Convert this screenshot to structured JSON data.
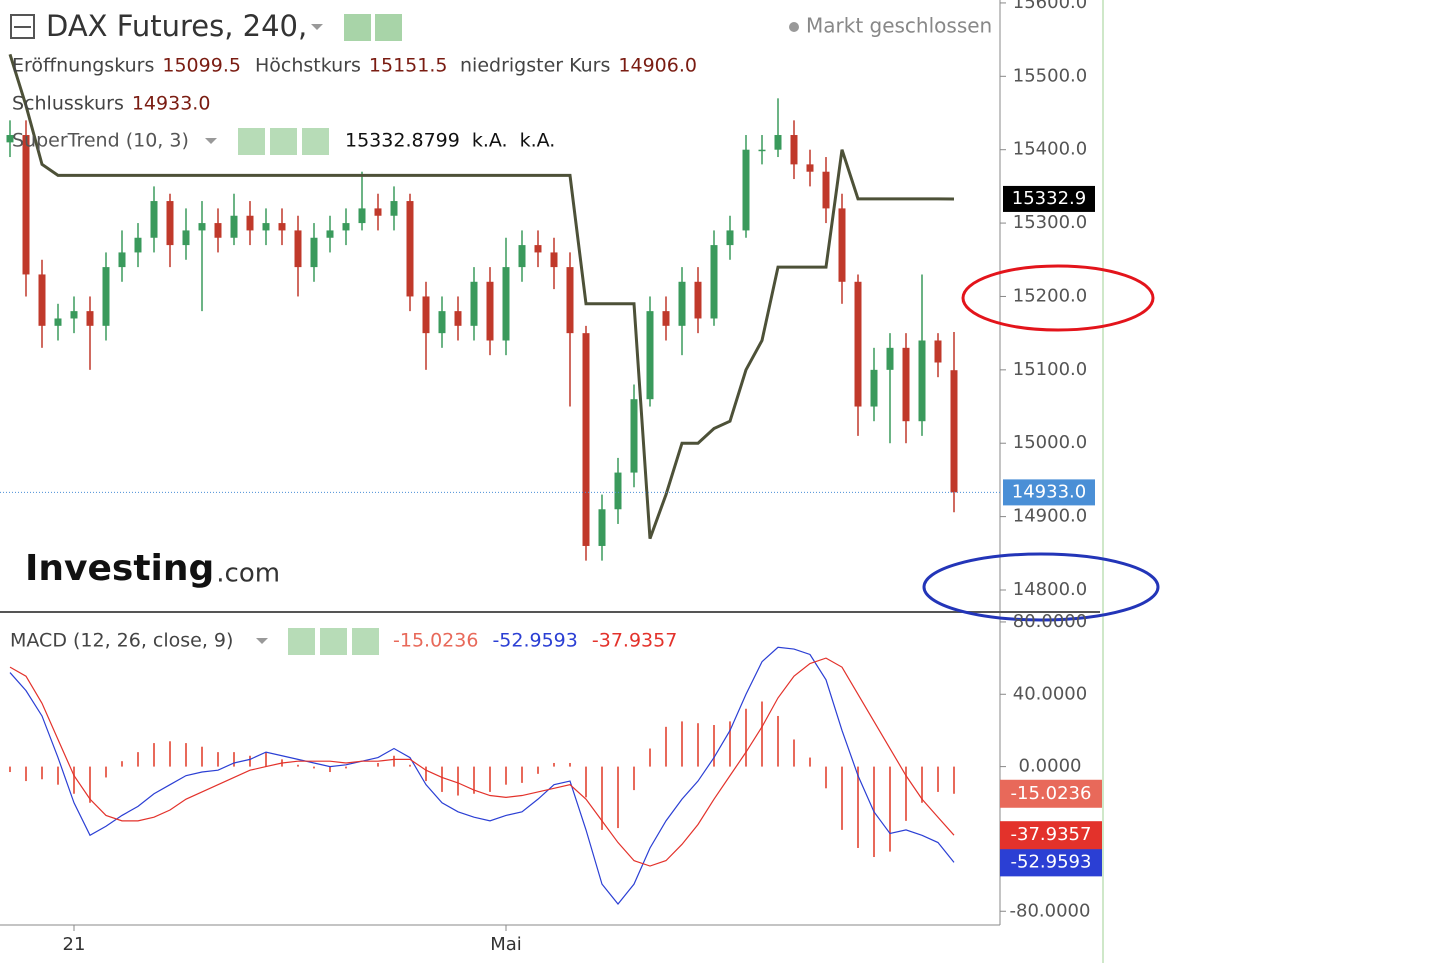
{
  "chart_data": [
    {
      "type": "candlestick",
      "title": "DAX Futures, 240,",
      "status": "Markt geschlossen",
      "readout": [
        {
          "label": "Eröffnungskurs",
          "value": "15099.5"
        },
        {
          "label": "Höchstkurs",
          "value": "15151.5"
        },
        {
          "label": "niedrigster Kurs",
          "value": "14906.0"
        },
        {
          "label": "Schlusskurs",
          "value": "14933.0"
        }
      ],
      "logo": {
        "brand": "Investing",
        "suffix": ".com"
      },
      "categories": [
        null,
        null,
        null,
        null,
        "21",
        null,
        null,
        null,
        null,
        null,
        null,
        null,
        null,
        null,
        null,
        null,
        null,
        null,
        null,
        null,
        null,
        null,
        null,
        null,
        null,
        null,
        null,
        null,
        null,
        null,
        null,
        "Mai",
        null,
        null,
        null,
        null,
        null,
        null,
        null,
        null,
        null,
        null,
        null,
        null,
        null,
        null,
        null,
        null,
        null,
        null,
        null,
        null,
        null,
        null,
        null,
        null,
        null,
        null,
        null,
        null
      ],
      "open": [
        15410,
        15420,
        15230,
        15160,
        15170,
        15180,
        15160,
        15240,
        15260,
        15280,
        15330,
        15270,
        15290,
        15300,
        15280,
        15310,
        15290,
        15300,
        15290,
        15240,
        15280,
        15290,
        15300,
        15320,
        15310,
        15330,
        15200,
        15150,
        15180,
        15160,
        15220,
        15140,
        15240,
        15270,
        15260,
        15240,
        15150,
        14860,
        14910,
        14960,
        15060,
        15180,
        15160,
        15220,
        15170,
        15270,
        15290,
        15400,
        15400,
        15420,
        15380,
        15370,
        15320,
        15220,
        15050,
        15100,
        15130,
        15030,
        15140,
        15099.5
      ],
      "high": [
        15440,
        15440,
        15250,
        15190,
        15200,
        15200,
        15260,
        15290,
        15300,
        15350,
        15340,
        15320,
        15330,
        15320,
        15340,
        15330,
        15320,
        15320,
        15310,
        15300,
        15310,
        15320,
        15370,
        15340,
        15350,
        15340,
        15220,
        15200,
        15200,
        15240,
        15240,
        15280,
        15290,
        15290,
        15280,
        15260,
        15160,
        14930,
        14980,
        15080,
        15200,
        15200,
        15240,
        15240,
        15290,
        15310,
        15420,
        15420,
        15470,
        15440,
        15400,
        15390,
        15340,
        15230,
        15130,
        15150,
        15150,
        15230,
        15150,
        15151.5
      ],
      "low": [
        15390,
        15200,
        15130,
        15140,
        15150,
        15100,
        15140,
        15220,
        15240,
        15260,
        15240,
        15250,
        15180,
        15260,
        15270,
        15270,
        15270,
        15270,
        15200,
        15220,
        15260,
        15270,
        15290,
        15290,
        15290,
        15180,
        15100,
        15130,
        15140,
        15140,
        15120,
        15120,
        15220,
        15240,
        15210,
        15050,
        14840,
        14840,
        14890,
        14940,
        15050,
        15140,
        15120,
        15150,
        15160,
        15250,
        15280,
        15380,
        15390,
        15360,
        15350,
        15300,
        15190,
        15010,
        15030,
        15000,
        15000,
        15010,
        15090,
        14906
      ],
      "close": [
        15420,
        15230,
        15160,
        15170,
        15180,
        15160,
        15240,
        15260,
        15280,
        15330,
        15270,
        15290,
        15300,
        15280,
        15310,
        15290,
        15300,
        15290,
        15240,
        15280,
        15290,
        15300,
        15320,
        15310,
        15330,
        15200,
        15150,
        15180,
        15160,
        15220,
        15140,
        15240,
        15270,
        15260,
        15240,
        15150,
        14860,
        14910,
        14960,
        15060,
        15180,
        15160,
        15220,
        15170,
        15270,
        15290,
        15400,
        15400,
        15420,
        15380,
        15370,
        15320,
        15220,
        15050,
        15100,
        15130,
        15030,
        15140,
        15110,
        14933
      ],
      "up_color": "#3a9a5c",
      "down_color": "#c0392b",
      "supertrend": {
        "name": "SuperTrend (10, 3)",
        "readout": [
          "15332.8799",
          "k.A.",
          "k.A."
        ],
        "color": "#4d5138",
        "values": [
          15530,
          15460,
          15380,
          15365,
          15365,
          15365,
          15365,
          15365,
          15365,
          15365,
          15365,
          15365,
          15365,
          15365,
          15365,
          15365,
          15365,
          15365,
          15365,
          15365,
          15365,
          15365,
          15365,
          15365,
          15365,
          15365,
          15365,
          15365,
          15365,
          15365,
          15365,
          15365,
          15365,
          15365,
          15365,
          15365,
          15190,
          15190,
          15190,
          15190,
          14870,
          14930,
          15000,
          15000,
          15020,
          15030,
          15100,
          15140,
          15240,
          15240,
          15240,
          15240,
          15400,
          15333,
          15333,
          15333,
          15333,
          15333,
          15333,
          15332.8799
        ]
      },
      "price_markers": [
        {
          "value": 14933,
          "label": "14933.0",
          "color": "#4a8fd6",
          "dotted_line": true
        },
        {
          "value": 15332.9,
          "label": "15332.9",
          "color": "#000000"
        }
      ],
      "ylim": [
        14770,
        15604
      ],
      "yticks": [
        {
          "value": 14800,
          "label": "14800.0"
        },
        {
          "value": 14900,
          "label": "14900.0"
        },
        {
          "value": 15000,
          "label": "15000.0"
        },
        {
          "value": 15100,
          "label": "15100.0"
        },
        {
          "value": 15200,
          "label": "15200.0"
        },
        {
          "value": 15300,
          "label": "15300.0"
        },
        {
          "value": 15400,
          "label": "15400.0"
        },
        {
          "value": 15500,
          "label": "15500.0"
        },
        {
          "value": 15600,
          "label": "15600.0"
        }
      ]
    },
    {
      "type": "macd",
      "title": "MACD (12, 26, close, 9)",
      "series": [
        {
          "kind": "histogram",
          "color": "#e8695a",
          "values": [
            -3,
            -8,
            -7,
            -10,
            -15,
            -20,
            -6,
            3,
            8,
            13,
            14,
            13,
            11,
            8,
            8,
            6,
            8,
            4,
            1,
            -1,
            -3,
            -1,
            0,
            2,
            6,
            1,
            -8,
            -14,
            -16,
            -15,
            -14,
            -10,
            -9,
            -4,
            2,
            2,
            -17,
            -35,
            -34,
            -13,
            10,
            22,
            25,
            24,
            23,
            25,
            32,
            36,
            28,
            15,
            5,
            -12,
            -35,
            -45,
            -50,
            -47,
            -30,
            -20,
            -14,
            -15.0236
          ]
        },
        {
          "kind": "line",
          "color": "#2b3fd4",
          "values": [
            52,
            42,
            28,
            5,
            -20,
            -38,
            -33,
            -27,
            -22,
            -15,
            -10,
            -5,
            -3,
            -2,
            2,
            4,
            8,
            6,
            4,
            2,
            0,
            1,
            3,
            5,
            10,
            5,
            -10,
            -20,
            -25,
            -28,
            -30,
            -27,
            -25,
            -18,
            -10,
            -8,
            -35,
            -65,
            -76,
            -65,
            -45,
            -30,
            -18,
            -8,
            5,
            20,
            40,
            58,
            66,
            65,
            62,
            48,
            20,
            -5,
            -25,
            -37,
            -35,
            -38,
            -42,
            -52.9593
          ]
        },
        {
          "kind": "line",
          "color": "#e3322b",
          "values": [
            55,
            50,
            35,
            15,
            -5,
            -18,
            -27,
            -30,
            -30,
            -28,
            -24,
            -18,
            -14,
            -10,
            -6,
            -2,
            0,
            2,
            3,
            3,
            3,
            2,
            3,
            3,
            4,
            4,
            -2,
            -6,
            -9,
            -13,
            -16,
            -17,
            -16,
            -14,
            -12,
            -10,
            -18,
            -30,
            -42,
            -52,
            -55,
            -52,
            -43,
            -32,
            -18,
            -5,
            8,
            22,
            38,
            50,
            57,
            60,
            55,
            40,
            25,
            10,
            -5,
            -18,
            -28,
            -37.9357
          ]
        }
      ],
      "ylim": [
        -87.6,
        85.5
      ],
      "yticks": [
        {
          "value": 80,
          "label": "80.0000"
        },
        {
          "value": 40,
          "label": "40.0000"
        },
        {
          "value": 0,
          "label": "0.0000"
        },
        {
          "value": -80,
          "label": "-80.0000"
        }
      ]
    }
  ]
}
